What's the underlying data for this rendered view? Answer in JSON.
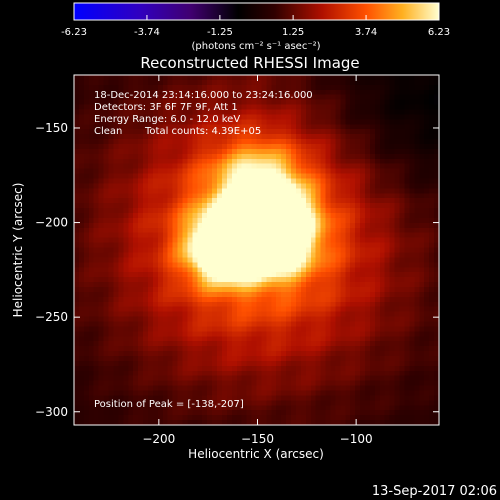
{
  "colorbar": {
    "ticks": [
      "-6.23",
      "-3.74",
      "-1.25",
      "1.25",
      "3.74",
      "6.23"
    ],
    "unit_label": "(photons cm⁻² s⁻¹ asec⁻²)",
    "min": -6.23,
    "max": 6.23
  },
  "chart_data": {
    "type": "heatmap",
    "title": "Reconstructed RHESSI Image",
    "xlabel": "Heliocentric X (arcsec)",
    "ylabel": "Heliocentric Y (arcsec)",
    "xlim": [
      -243,
      -58
    ],
    "ylim": [
      -307,
      -122
    ],
    "xticks": [
      -200,
      -150,
      -100
    ],
    "yticks": [
      -150,
      -200,
      -250,
      -300
    ],
    "peak": {
      "x": -138,
      "y": -207
    },
    "sources": [
      {
        "x": -142,
        "y": -205,
        "amp": 6.2,
        "sigma": 14
      },
      {
        "x": -168,
        "y": -213,
        "amp": 5.8,
        "sigma": 12
      },
      {
        "x": -150,
        "y": -180,
        "amp": 3.2,
        "sigma": 16
      },
      {
        "x": -150,
        "y": -208,
        "amp": 3.0,
        "sigma": 45
      }
    ]
  },
  "annotations": {
    "time_range": "18-Dec-2014 23:14:16.000 to 23:24:16.000",
    "detectors": "Detectors: 3F 6F 7F 9F, Att 1",
    "energy": "Energy Range: 6.0 - 12.0 keV",
    "method": "Clean",
    "counts": "Total counts: 4.39E+05",
    "peak_label": "Position of Peak = [-138,-207]"
  },
  "footer_date": "13-Sep-2017 02:06"
}
